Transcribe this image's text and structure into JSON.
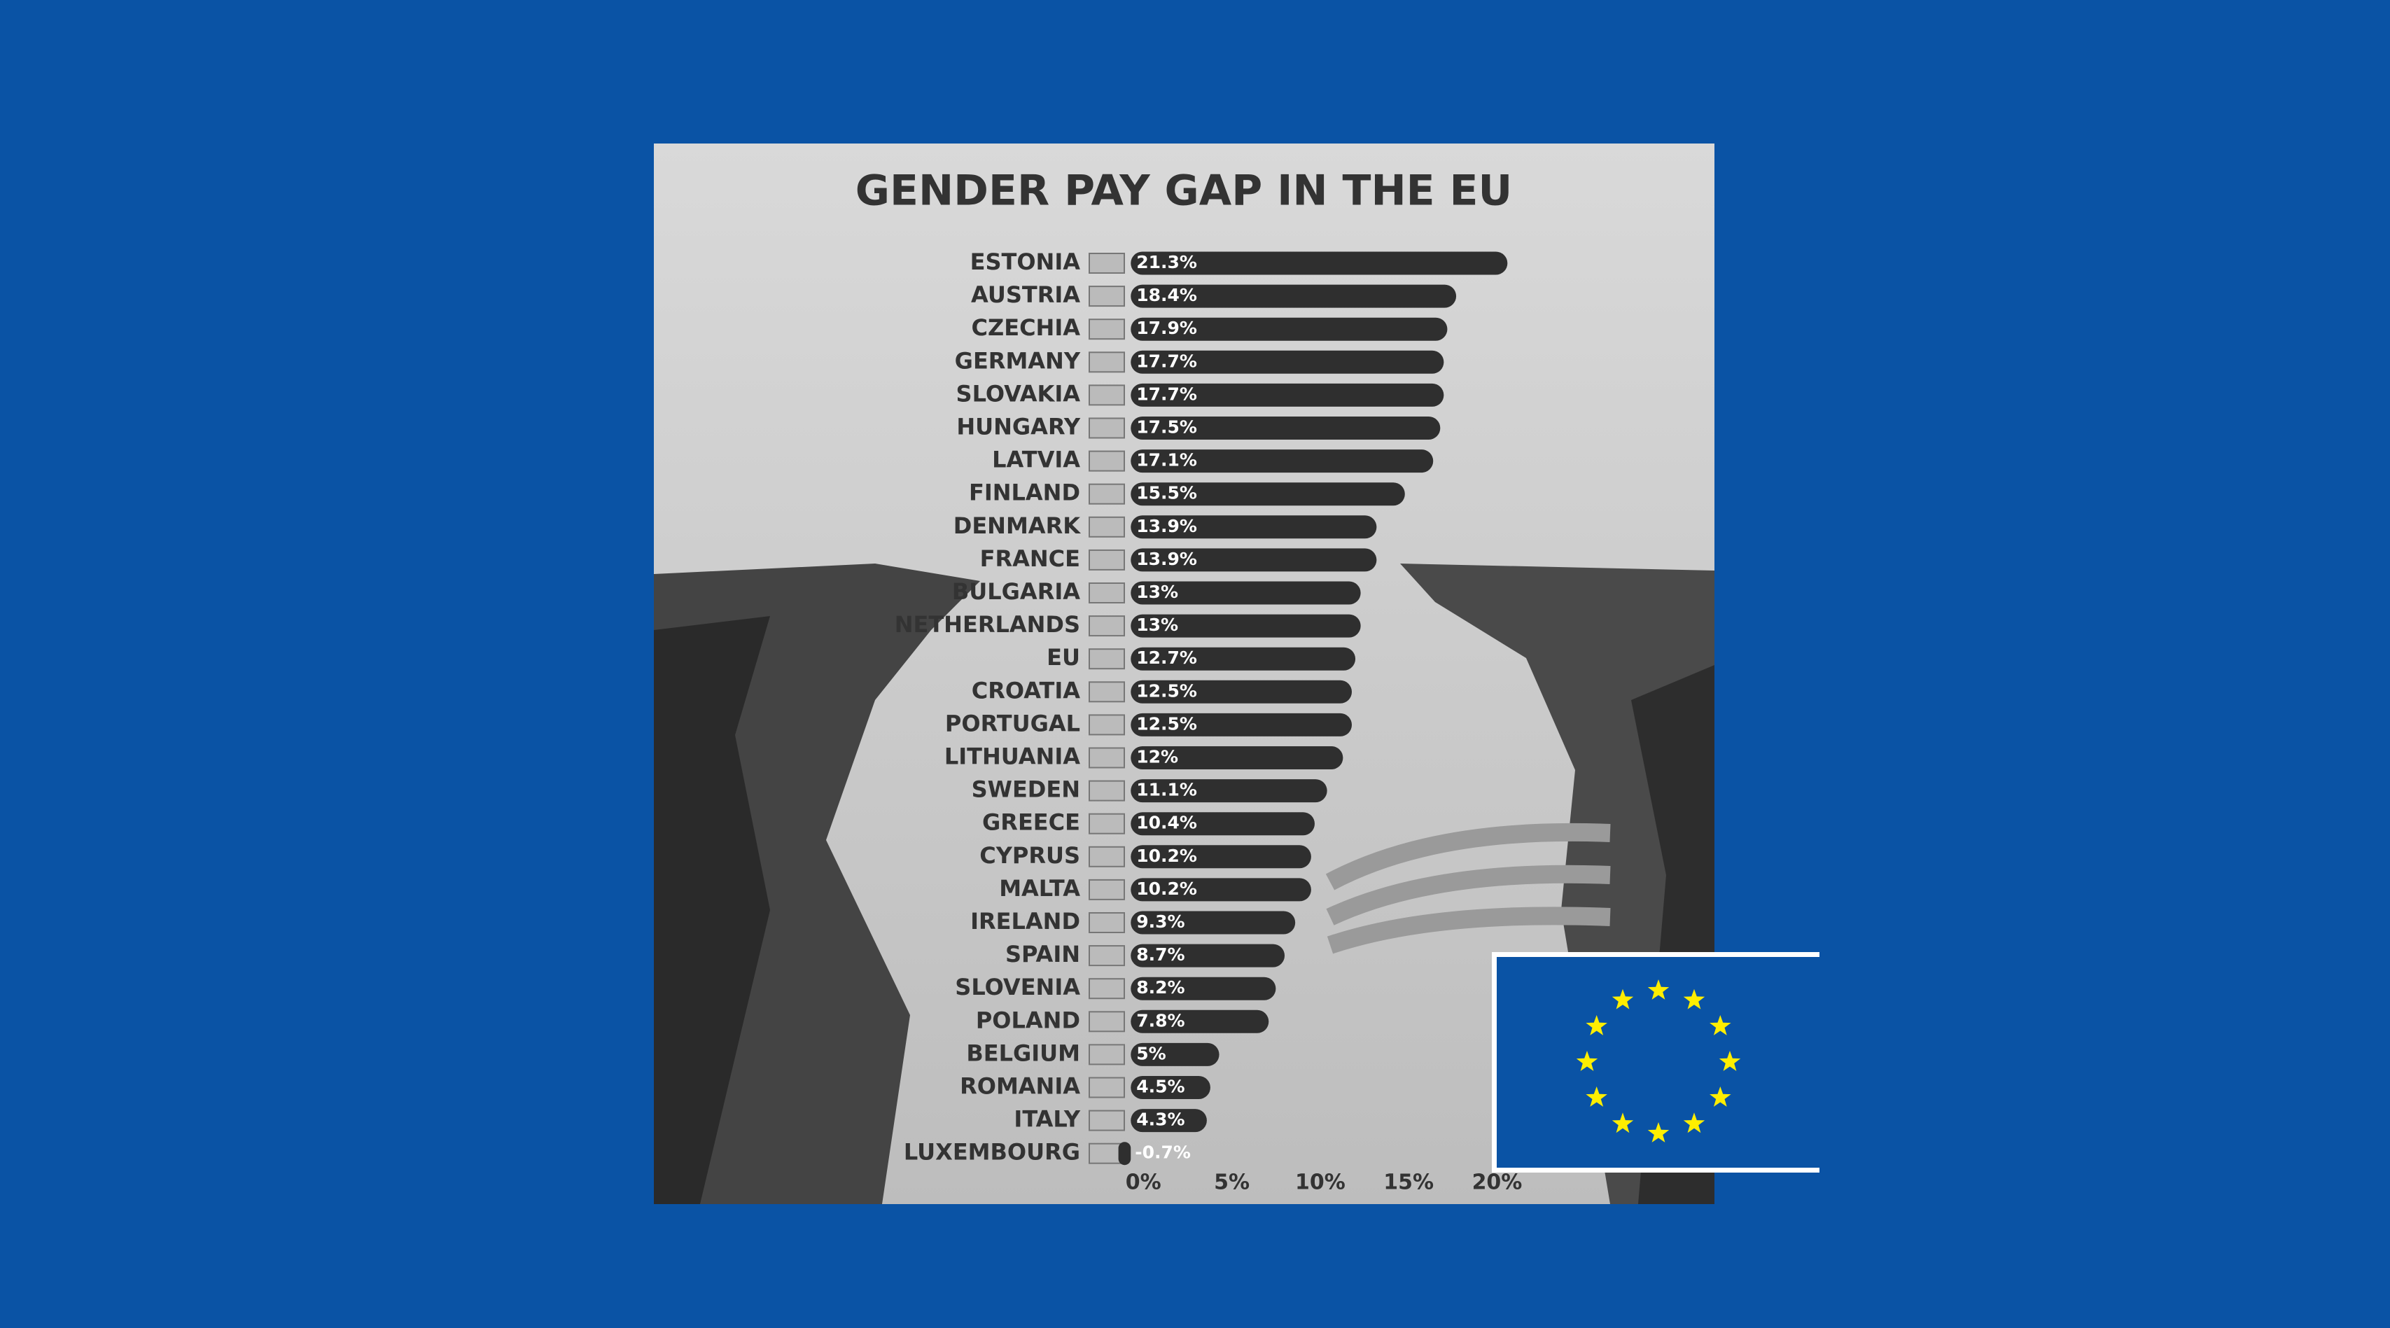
{
  "chart_data": {
    "type": "bar",
    "orientation": "horizontal",
    "title": "GENDER PAY GAP IN THE EU",
    "categories": [
      "ESTONIA",
      "AUSTRIA",
      "CZECHIA",
      "GERMANY",
      "SLOVAKIA",
      "HUNGARY",
      "LATVIA",
      "FINLAND",
      "DENMARK",
      "FRANCE",
      "BULGARIA",
      "NETHERLANDS",
      "EU",
      "CROATIA",
      "PORTUGAL",
      "LITHUANIA",
      "SWEDEN",
      "GREECE",
      "CYPRUS",
      "MALTA",
      "IRELAND",
      "SPAIN",
      "SLOVENIA",
      "POLAND",
      "BELGIUM",
      "ROMANIA",
      "ITALY",
      "LUXEMBOURG"
    ],
    "values": [
      21.3,
      18.4,
      17.9,
      17.7,
      17.7,
      17.5,
      17.1,
      15.5,
      13.9,
      13.9,
      13,
      13,
      12.7,
      12.5,
      12.5,
      12,
      11.1,
      10.4,
      10.2,
      10.2,
      9.3,
      8.7,
      8.2,
      7.8,
      5,
      4.5,
      4.3,
      -0.7
    ],
    "value_labels": [
      "21.3%",
      "18.4%",
      "17.9%",
      "17.7%",
      "17.7%",
      "17.5%",
      "17.1%",
      "15.5%",
      "13.9%",
      "13.9%",
      "13%",
      "13%",
      "12.7%",
      "12.5%",
      "12.5%",
      "12%",
      "11.1%",
      "10.4%",
      "10.2%",
      "10.2%",
      "9.3%",
      "8.7%",
      "8.2%",
      "7.8%",
      "5%",
      "4.5%",
      "4.3%",
      "-0.7%"
    ],
    "color": "#2f2f2f",
    "xlim": [
      -1,
      22
    ],
    "xticks": [
      {
        "value": 0,
        "label": "0%"
      },
      {
        "value": 5,
        "label": "5%"
      },
      {
        "value": 10,
        "label": "10%"
      },
      {
        "value": 15,
        "label": "15%"
      },
      {
        "value": 20,
        "label": "20%"
      }
    ],
    "grid": false
  }
}
